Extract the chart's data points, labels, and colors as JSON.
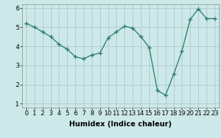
{
  "x": [
    0,
    1,
    2,
    3,
    4,
    5,
    6,
    7,
    8,
    9,
    10,
    11,
    12,
    13,
    14,
    15,
    16,
    17,
    18,
    19,
    20,
    21,
    22,
    23
  ],
  "y": [
    5.2,
    5.0,
    4.75,
    4.5,
    4.1,
    3.85,
    3.45,
    3.35,
    3.55,
    3.65,
    4.45,
    4.75,
    5.05,
    4.95,
    4.5,
    3.95,
    1.7,
    1.45,
    2.55,
    3.75,
    5.4,
    5.95,
    5.45,
    5.45
  ],
  "line_color": "#2e7d6e",
  "marker": "+",
  "marker_size": 4,
  "marker_lw": 1.0,
  "line_width": 1.0,
  "bg_color": "#cce8e8",
  "grid_color": "#b0cccc",
  "xlabel": "Humidex (Indice chaleur)",
  "xlim": [
    -0.5,
    23.5
  ],
  "ylim": [
    0.8,
    6.2
  ],
  "xticks": [
    0,
    1,
    2,
    3,
    4,
    5,
    6,
    7,
    8,
    9,
    10,
    11,
    12,
    13,
    14,
    15,
    16,
    17,
    18,
    19,
    20,
    21,
    22,
    23
  ],
  "yticks": [
    1,
    2,
    3,
    4,
    5,
    6
  ],
  "tick_font_size": 6.5,
  "xlabel_font_size": 7.5,
  "xlabel_bold": true
}
